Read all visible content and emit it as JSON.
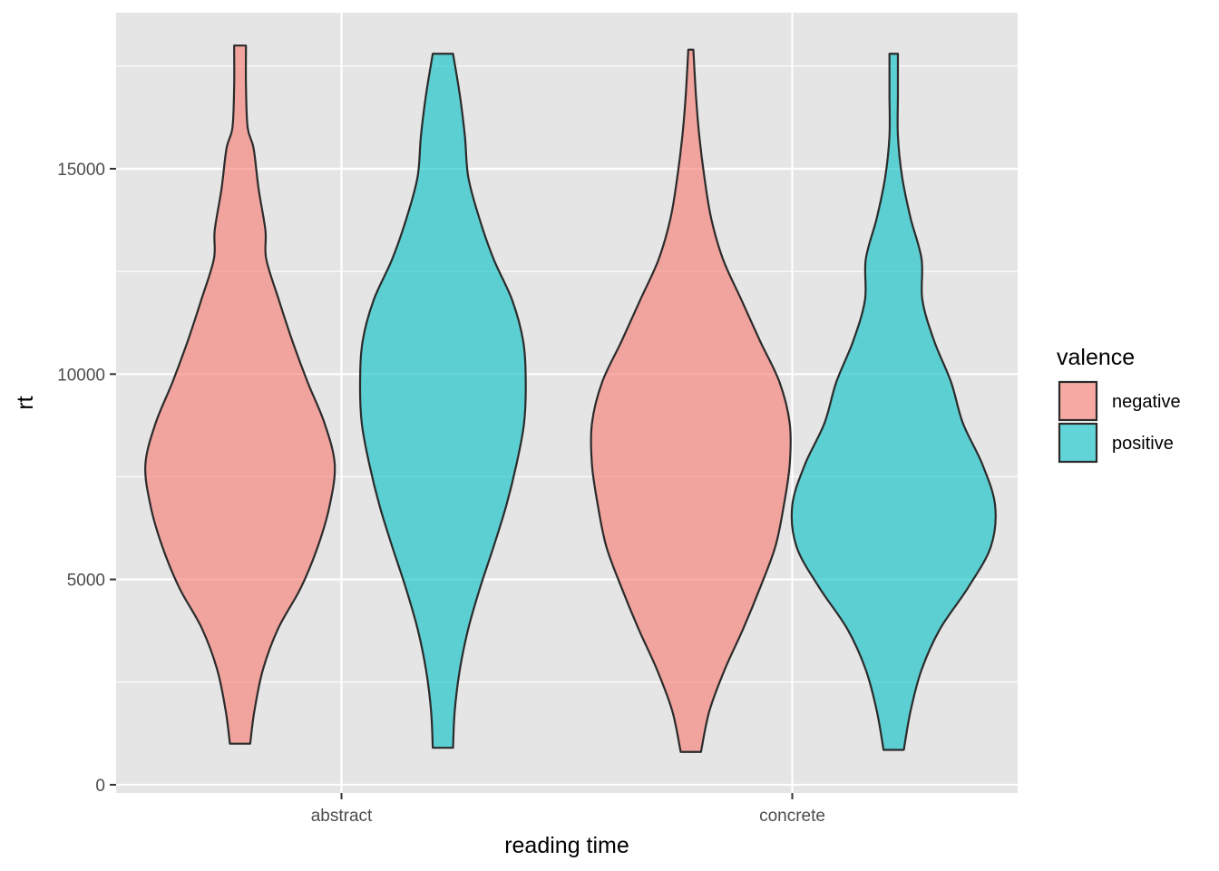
{
  "chart_data": {
    "type": "violin",
    "xlabel": "reading time",
    "ylabel": "rt",
    "ylim": [
      -200,
      18800
    ],
    "yticks": [
      0,
      5000,
      10000,
      15000
    ],
    "ytick_labels": [
      "0",
      "5000",
      "10000",
      "15000"
    ],
    "categories": [
      "abstract",
      "concrete"
    ],
    "legend": {
      "title": "valence",
      "placement": "right",
      "entries": [
        {
          "label": "negative",
          "color": "#F8766D"
        },
        {
          "label": "positive",
          "color": "#00BFC4"
        }
      ]
    },
    "grid": true,
    "series": [
      {
        "name": "negative",
        "color": "#F8766D",
        "violins": [
          {
            "category": "abstract",
            "min": 1000,
            "max": 18000,
            "profile": [
              [
                1000,
                0.12
              ],
              [
                1800,
                0.17
              ],
              [
                2800,
                0.27
              ],
              [
                3800,
                0.45
              ],
              [
                4800,
                0.72
              ],
              [
                5800,
                0.92
              ],
              [
                6800,
                1.06
              ],
              [
                7800,
                1.12
              ],
              [
                8800,
                1.0
              ],
              [
                9800,
                0.8
              ],
              [
                10800,
                0.62
              ],
              [
                11800,
                0.46
              ],
              [
                12800,
                0.31
              ],
              [
                13500,
                0.3
              ],
              [
                14500,
                0.22
              ],
              [
                15500,
                0.16
              ],
              [
                16000,
                0.09
              ],
              [
                17000,
                0.07
              ],
              [
                18000,
                0.07
              ]
            ]
          },
          {
            "category": "concrete",
            "min": 800,
            "max": 17900,
            "profile": [
              [
                800,
                0.12
              ],
              [
                1800,
                0.22
              ],
              [
                2800,
                0.4
              ],
              [
                3800,
                0.62
              ],
              [
                4800,
                0.82
              ],
              [
                5800,
                1.0
              ],
              [
                6800,
                1.1
              ],
              [
                7800,
                1.17
              ],
              [
                8800,
                1.17
              ],
              [
                9800,
                1.05
              ],
              [
                10800,
                0.82
              ],
              [
                11800,
                0.6
              ],
              [
                12800,
                0.38
              ],
              [
                13800,
                0.24
              ],
              [
                14800,
                0.16
              ],
              [
                15800,
                0.1
              ],
              [
                16800,
                0.06
              ],
              [
                17900,
                0.03
              ]
            ]
          }
        ]
      },
      {
        "name": "positive",
        "color": "#00BFC4",
        "violins": [
          {
            "category": "abstract",
            "min": 900,
            "max": 17800,
            "profile": [
              [
                900,
                0.12
              ],
              [
                1800,
                0.14
              ],
              [
                2800,
                0.2
              ],
              [
                3800,
                0.3
              ],
              [
                4800,
                0.44
              ],
              [
                5800,
                0.6
              ],
              [
                6800,
                0.75
              ],
              [
                7800,
                0.87
              ],
              [
                8800,
                0.96
              ],
              [
                9800,
                0.98
              ],
              [
                10800,
                0.95
              ],
              [
                11800,
                0.82
              ],
              [
                12800,
                0.6
              ],
              [
                13800,
                0.43
              ],
              [
                14800,
                0.3
              ],
              [
                15800,
                0.26
              ],
              [
                16800,
                0.2
              ],
              [
                17800,
                0.12
              ]
            ]
          },
          {
            "category": "concrete",
            "min": 850,
            "max": 17800,
            "profile": [
              [
                850,
                0.12
              ],
              [
                1800,
                0.2
              ],
              [
                2800,
                0.33
              ],
              [
                3800,
                0.55
              ],
              [
                4800,
                0.88
              ],
              [
                5800,
                1.15
              ],
              [
                6800,
                1.2
              ],
              [
                7800,
                1.05
              ],
              [
                8800,
                0.82
              ],
              [
                9800,
                0.68
              ],
              [
                10800,
                0.48
              ],
              [
                11800,
                0.34
              ],
              [
                12800,
                0.33
              ],
              [
                13800,
                0.2
              ],
              [
                14800,
                0.1
              ],
              [
                15800,
                0.05
              ],
              [
                16800,
                0.05
              ],
              [
                17800,
                0.05
              ]
            ]
          }
        ]
      }
    ]
  }
}
